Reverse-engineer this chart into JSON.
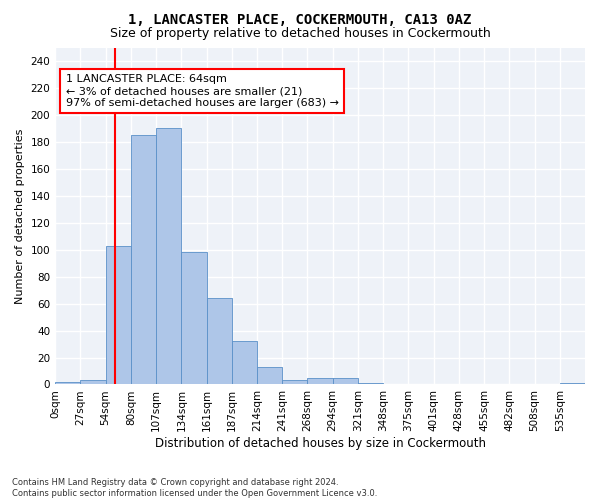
{
  "title": "1, LANCASTER PLACE, COCKERMOUTH, CA13 0AZ",
  "subtitle": "Size of property relative to detached houses in Cockermouth",
  "xlabel": "Distribution of detached houses by size in Cockermouth",
  "ylabel": "Number of detached properties",
  "footer_line1": "Contains HM Land Registry data © Crown copyright and database right 2024.",
  "footer_line2": "Contains public sector information licensed under the Open Government Licence v3.0.",
  "bar_labels": [
    "0sqm",
    "27sqm",
    "54sqm",
    "80sqm",
    "107sqm",
    "134sqm",
    "161sqm",
    "187sqm",
    "214sqm",
    "241sqm",
    "268sqm",
    "294sqm",
    "321sqm",
    "348sqm",
    "375sqm",
    "401sqm",
    "428sqm",
    "455sqm",
    "482sqm",
    "508sqm",
    "535sqm"
  ],
  "bar_values": [
    2,
    3,
    103,
    185,
    190,
    98,
    64,
    32,
    13,
    3,
    5,
    5,
    1,
    0,
    0,
    0,
    0,
    0,
    0,
    0,
    1
  ],
  "bar_color": "#aec6e8",
  "bar_edge_color": "#5a90c8",
  "annotation_text": "1 LANCASTER PLACE: 64sqm\n← 3% of detached houses are smaller (21)\n97% of semi-detached houses are larger (683) →",
  "annotation_box_color": "white",
  "annotation_box_edge_color": "red",
  "vline_color": "red",
  "ylim": [
    0,
    250
  ],
  "yticks": [
    0,
    20,
    40,
    60,
    80,
    100,
    120,
    140,
    160,
    180,
    200,
    220,
    240
  ],
  "background_color": "#eef2f8",
  "grid_color": "white",
  "title_fontsize": 10,
  "subtitle_fontsize": 9,
  "xlabel_fontsize": 8.5,
  "ylabel_fontsize": 8,
  "tick_fontsize": 7.5,
  "annotation_fontsize": 8
}
